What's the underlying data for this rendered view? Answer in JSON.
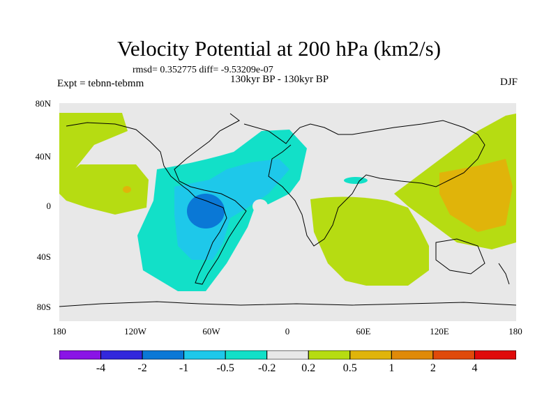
{
  "title": "Velocity Potential at 200 hPa (km2/s)",
  "stats_line": "rmsd= 0.352775  diff= -9.53209e-07",
  "dates_line": "130kyr BP - 130kyr BP",
  "experiment": "Expt = tebnn-tebmm",
  "season": "DJF",
  "lat_labels": [
    "80N",
    "40N",
    "0",
    "40S",
    "80S"
  ],
  "lon_labels": [
    "180",
    "120W",
    "60W",
    "0",
    "60E",
    "120E",
    "180"
  ],
  "colorbar": {
    "labels": [
      "-4",
      "-2",
      "-1",
      "-0.5",
      "-0.2",
      "0.2",
      "0.5",
      "1",
      "2",
      "4"
    ],
    "colors": [
      "#8a14e6",
      "#3228dc",
      "#0a78d6",
      "#1ec8ea",
      "#12e0c8",
      "#e8e8e8",
      "#b6dc12",
      "#e0b40a",
      "#e08a08",
      "#e04a0a",
      "#e00a0a"
    ]
  },
  "map_colors": {
    "background": "#e8e8e8",
    "pos_low": "#b6dc12",
    "pos_mid": "#e0b40a",
    "pos_high": "#e08a08",
    "neg_low": "#12e0c8",
    "neg_mid": "#1ec8ea",
    "neg_high": "#0a78d6"
  }
}
